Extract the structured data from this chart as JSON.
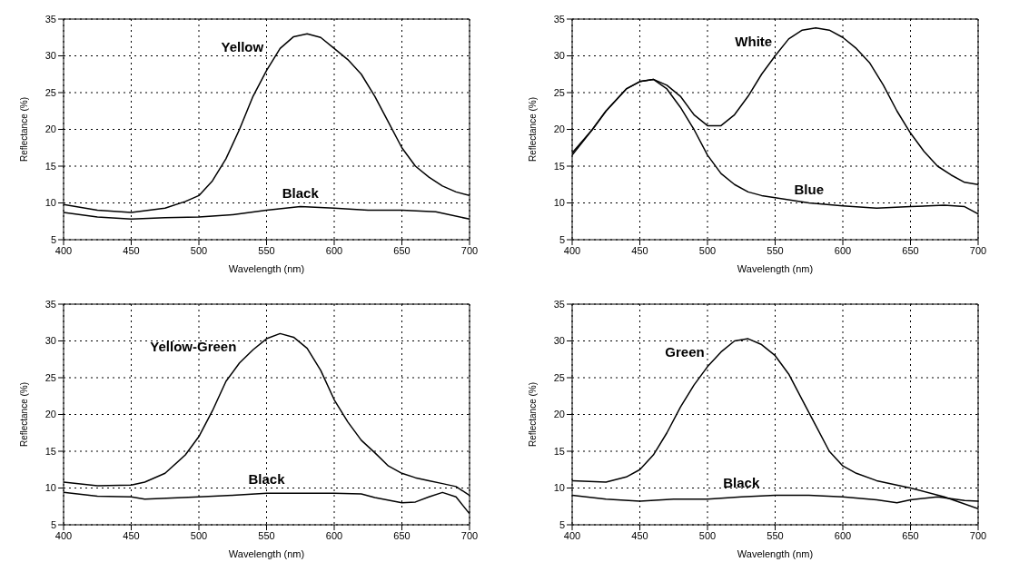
{
  "chart_data": [
    {
      "type": "line",
      "xlabel": "Wavelength (nm)",
      "ylabel": "Reflectance (%)",
      "xlim": [
        400,
        700
      ],
      "ylim": [
        5,
        35
      ],
      "xticks": [
        400,
        450,
        500,
        550,
        600,
        650,
        700
      ],
      "yticks": [
        5,
        10,
        15,
        20,
        25,
        30,
        35
      ],
      "grid": true,
      "marker": "none",
      "line_style": "solid",
      "series": [
        {
          "name": "Yellow",
          "color": "#000000",
          "x": [
            400,
            425,
            450,
            475,
            490,
            500,
            510,
            520,
            530,
            540,
            550,
            560,
            570,
            580,
            590,
            600,
            610,
            620,
            630,
            640,
            650,
            660,
            670,
            680,
            690,
            700
          ],
          "values": [
            9.8,
            9.0,
            8.7,
            9.3,
            10.2,
            11,
            13,
            16,
            20,
            24.5,
            28,
            31,
            32.6,
            33,
            32.5,
            31,
            29.5,
            27.5,
            24.5,
            21,
            17.5,
            15,
            13.5,
            12.3,
            11.5,
            11
          ]
        },
        {
          "name": "Black",
          "color": "#000000",
          "x": [
            400,
            425,
            450,
            475,
            500,
            525,
            550,
            575,
            600,
            625,
            650,
            675,
            700
          ],
          "values": [
            8.7,
            8.1,
            7.8,
            8.0,
            8.1,
            8.4,
            9.0,
            9.5,
            9.3,
            9.0,
            9.0,
            8.8,
            7.8
          ]
        }
      ]
    },
    {
      "type": "line",
      "xlabel": "Wavelength (nm)",
      "ylabel": "Reflectance (%)",
      "xlim": [
        400,
        700
      ],
      "ylim": [
        5,
        35
      ],
      "xticks": [
        400,
        450,
        500,
        550,
        600,
        650,
        700
      ],
      "yticks": [
        5,
        10,
        15,
        20,
        25,
        30,
        35
      ],
      "grid": true,
      "marker": "none",
      "line_style": "solid",
      "series": [
        {
          "name": "White",
          "color": "#000000",
          "x": [
            400,
            415,
            425,
            440,
            450,
            460,
            470,
            480,
            490,
            500,
            510,
            520,
            530,
            540,
            550,
            560,
            570,
            580,
            590,
            600,
            610,
            620,
            630,
            640,
            650,
            660,
            670,
            680,
            690,
            700
          ],
          "values": [
            16.5,
            20,
            22.5,
            25.5,
            26.5,
            26.8,
            26,
            24.5,
            22,
            20.5,
            20.5,
            22,
            24.5,
            27.5,
            30,
            32.3,
            33.5,
            33.8,
            33.5,
            32.5,
            31,
            29,
            26,
            22.5,
            19.5,
            17,
            15,
            13.8,
            12.8,
            12.5
          ]
        },
        {
          "name": "Blue",
          "color": "#000000",
          "x": [
            400,
            415,
            425,
            440,
            450,
            460,
            470,
            480,
            490,
            500,
            510,
            520,
            530,
            540,
            550,
            575,
            600,
            625,
            650,
            675,
            690,
            700
          ],
          "values": [
            16.8,
            20,
            22.5,
            25.5,
            26.5,
            26.8,
            25.5,
            23,
            20,
            16.5,
            14,
            12.5,
            11.5,
            11,
            10.7,
            10,
            9.6,
            9.3,
            9.5,
            9.7,
            9.5,
            8.5
          ]
        }
      ]
    },
    {
      "type": "line",
      "xlabel": "Wavelength (nm)",
      "ylabel": "Reflectance (%)",
      "xlim": [
        400,
        700
      ],
      "ylim": [
        5,
        35
      ],
      "xticks": [
        400,
        450,
        500,
        550,
        600,
        650,
        700
      ],
      "yticks": [
        5,
        10,
        15,
        20,
        25,
        30,
        35
      ],
      "grid": true,
      "marker": "none",
      "line_style": "solid",
      "series": [
        {
          "name": "Yellow-Green",
          "color": "#000000",
          "x": [
            400,
            425,
            450,
            460,
            475,
            490,
            500,
            510,
            520,
            530,
            540,
            550,
            560,
            570,
            580,
            590,
            600,
            610,
            620,
            630,
            640,
            650,
            660,
            670,
            680,
            690,
            700
          ],
          "values": [
            10.8,
            10.3,
            10.4,
            10.8,
            12,
            14.5,
            17,
            20.5,
            24.5,
            27,
            28.8,
            30.3,
            31,
            30.5,
            29,
            26,
            22,
            19,
            16.5,
            14.8,
            13,
            12,
            11.4,
            11,
            10.6,
            10.2,
            9
          ]
        },
        {
          "name": "Black",
          "color": "#000000",
          "x": [
            400,
            425,
            450,
            460,
            500,
            525,
            550,
            575,
            600,
            620,
            630,
            650,
            660,
            670,
            680,
            690,
            700
          ],
          "values": [
            9.4,
            8.9,
            8.8,
            8.5,
            8.8,
            9.0,
            9.3,
            9.3,
            9.3,
            9.2,
            8.7,
            8.0,
            8.1,
            8.8,
            9.4,
            8.8,
            6.5
          ]
        }
      ]
    },
    {
      "type": "line",
      "xlabel": "Wavelength (nm)",
      "ylabel": "Reflectance (%)",
      "xlim": [
        400,
        700
      ],
      "ylim": [
        5,
        35
      ],
      "xticks": [
        400,
        450,
        500,
        550,
        600,
        650,
        700
      ],
      "yticks": [
        5,
        10,
        15,
        20,
        25,
        30,
        35
      ],
      "grid": true,
      "marker": "none",
      "line_style": "solid",
      "series": [
        {
          "name": "Green",
          "color": "#000000",
          "x": [
            400,
            425,
            440,
            450,
            460,
            470,
            480,
            490,
            500,
            510,
            520,
            530,
            540,
            550,
            560,
            570,
            580,
            590,
            600,
            610,
            625,
            650,
            675,
            700
          ],
          "values": [
            11,
            10.8,
            11.5,
            12.5,
            14.5,
            17.5,
            21,
            24,
            26.5,
            28.5,
            30,
            30.3,
            29.5,
            28,
            25.5,
            22,
            18.5,
            15,
            13,
            12,
            11,
            10,
            8.8,
            7.2
          ]
        },
        {
          "name": "Black",
          "color": "#000000",
          "x": [
            400,
            425,
            450,
            475,
            500,
            525,
            550,
            575,
            600,
            625,
            640,
            650,
            670,
            690,
            700
          ],
          "values": [
            9,
            8.5,
            8.2,
            8.5,
            8.5,
            8.8,
            9.0,
            9.0,
            8.8,
            8.4,
            8.0,
            8.4,
            8.8,
            8.3,
            8.2
          ]
        }
      ]
    }
  ]
}
